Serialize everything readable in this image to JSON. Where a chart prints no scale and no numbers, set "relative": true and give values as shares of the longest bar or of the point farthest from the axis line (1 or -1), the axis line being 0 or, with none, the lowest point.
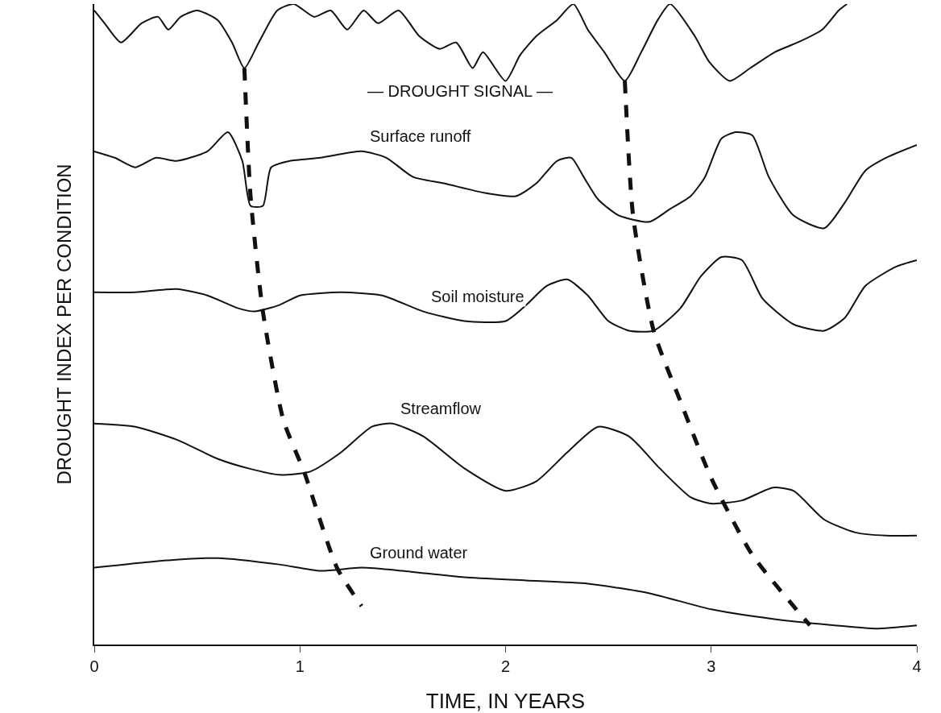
{
  "chart_data": {
    "type": "line",
    "relative": true,
    "xlabel": "TIME, IN YEARS",
    "ylabel": "DROUGHT INDEX PER CONDITION",
    "xlim": [
      0,
      4
    ],
    "xticks": [
      0,
      1,
      2,
      3,
      4
    ],
    "tick_labels": "x",
    "grid": false,
    "legend": false,
    "annotations": [
      "— DROUGHT SIGNAL —"
    ],
    "series": [
      {
        "color": "#111111",
        "line_style": "solid",
        "x": [
          0,
          0.05,
          0.13,
          0.23,
          0.31,
          0.36,
          0.42,
          0.5,
          0.6,
          0.67,
          0.73,
          0.8,
          0.89,
          0.97,
          1.07,
          1.15,
          1.23,
          1.31,
          1.38,
          1.48,
          1.58,
          1.68,
          1.76,
          1.84,
          1.89,
          2.0,
          2.07,
          2.15,
          2.25,
          2.33,
          2.4,
          2.48,
          2.58,
          2.66,
          2.74,
          2.8,
          2.92,
          2.99,
          3.09,
          3.19,
          3.31,
          3.42,
          3.54,
          3.62,
          3.66
        ],
        "values": [
          0.99,
          0.97,
          0.94,
          0.97,
          0.98,
          0.96,
          0.98,
          0.99,
          0.975,
          0.94,
          0.9,
          0.94,
          0.99,
          1,
          0.98,
          0.99,
          0.96,
          0.99,
          0.97,
          0.99,
          0.95,
          0.93,
          0.94,
          0.9,
          0.925,
          0.88,
          0.92,
          0.95,
          0.975,
          1,
          0.96,
          0.925,
          0.88,
          0.925,
          0.975,
          1,
          0.95,
          0.91,
          0.88,
          0.9,
          0.925,
          0.94,
          0.96,
          0.99,
          1
        ]
      },
      {
        "name": "Surface runoff",
        "color": "#111111",
        "line_style": "solid",
        "x": [
          0,
          0.1,
          0.2,
          0.3,
          0.4,
          0.55,
          0.65,
          0.72,
          0.76,
          0.82,
          0.86,
          0.95,
          1.1,
          1.3,
          1.42,
          1.55,
          1.7,
          1.9,
          2.05,
          2.15,
          2.25,
          2.32,
          2.38,
          2.45,
          2.55,
          2.7,
          2.8,
          2.9,
          2.97,
          3.05,
          3.12,
          3.2,
          3.28,
          3.4,
          3.55,
          3.65,
          3.75,
          3.85,
          4
        ],
        "values": [
          0.77,
          0.76,
          0.745,
          0.76,
          0.755,
          0.77,
          0.8,
          0.755,
          0.685,
          0.685,
          0.745,
          0.755,
          0.76,
          0.77,
          0.76,
          0.73,
          0.72,
          0.705,
          0.7,
          0.72,
          0.755,
          0.76,
          0.73,
          0.695,
          0.67,
          0.66,
          0.68,
          0.7,
          0.73,
          0.79,
          0.8,
          0.795,
          0.73,
          0.67,
          0.65,
          0.69,
          0.74,
          0.76,
          0.78
        ]
      },
      {
        "name": "Soil moisture",
        "color": "#111111",
        "line_style": "solid",
        "x": [
          0,
          0.2,
          0.4,
          0.55,
          0.7,
          0.78,
          0.9,
          1.0,
          1.2,
          1.4,
          1.6,
          1.8,
          2.0,
          2.1,
          2.2,
          2.3,
          2.4,
          2.5,
          2.6,
          2.72,
          2.85,
          2.95,
          3.05,
          3.15,
          3.25,
          3.4,
          3.55,
          3.65,
          3.75,
          3.9,
          4
        ],
        "values": [
          0.55,
          0.55,
          0.555,
          0.545,
          0.525,
          0.52,
          0.53,
          0.545,
          0.55,
          0.545,
          0.52,
          0.505,
          0.505,
          0.53,
          0.56,
          0.57,
          0.545,
          0.505,
          0.49,
          0.49,
          0.525,
          0.575,
          0.605,
          0.6,
          0.54,
          0.5,
          0.49,
          0.51,
          0.56,
          0.59,
          0.6
        ]
      },
      {
        "name": "Streamflow",
        "color": "#111111",
        "line_style": "solid",
        "x": [
          0,
          0.2,
          0.4,
          0.6,
          0.75,
          0.9,
          1.05,
          1.2,
          1.35,
          1.45,
          1.6,
          1.8,
          2.0,
          2.15,
          2.3,
          2.45,
          2.6,
          2.75,
          2.9,
          3.0,
          3.15,
          3.3,
          3.4,
          3.55,
          3.7,
          3.85,
          4
        ],
        "values": [
          0.345,
          0.34,
          0.32,
          0.29,
          0.275,
          0.265,
          0.27,
          0.3,
          0.34,
          0.345,
          0.325,
          0.275,
          0.24,
          0.255,
          0.3,
          0.34,
          0.325,
          0.275,
          0.23,
          0.22,
          0.225,
          0.245,
          0.24,
          0.195,
          0.175,
          0.17,
          0.17
        ]
      },
      {
        "name": "Ground water",
        "color": "#111111",
        "line_style": "solid",
        "x": [
          0,
          0.3,
          0.6,
          0.9,
          1.1,
          1.3,
          1.5,
          1.8,
          2.1,
          2.4,
          2.7,
          3.0,
          3.3,
          3.6,
          3.8,
          4.0
        ],
        "values": [
          0.12,
          0.13,
          0.135,
          0.125,
          0.115,
          0.12,
          0.115,
          0.105,
          0.1,
          0.095,
          0.08,
          0.055,
          0.04,
          0.03,
          0.025,
          0.03
        ]
      },
      {
        "color": "#111111",
        "line_style": "dashed",
        "x": [
          0.73,
          0.76,
          0.82,
          0.92,
          1.02,
          1.18,
          1.3
        ],
        "values": [
          0.9,
          0.7,
          0.52,
          0.35,
          0.27,
          0.12,
          0.06
        ]
      },
      {
        "color": "#111111",
        "line_style": "dashed",
        "x": [
          2.58,
          2.62,
          2.72,
          2.85,
          3.0,
          3.2,
          3.48
        ],
        "values": [
          0.88,
          0.67,
          0.49,
          0.38,
          0.26,
          0.14,
          0.03
        ]
      }
    ]
  }
}
